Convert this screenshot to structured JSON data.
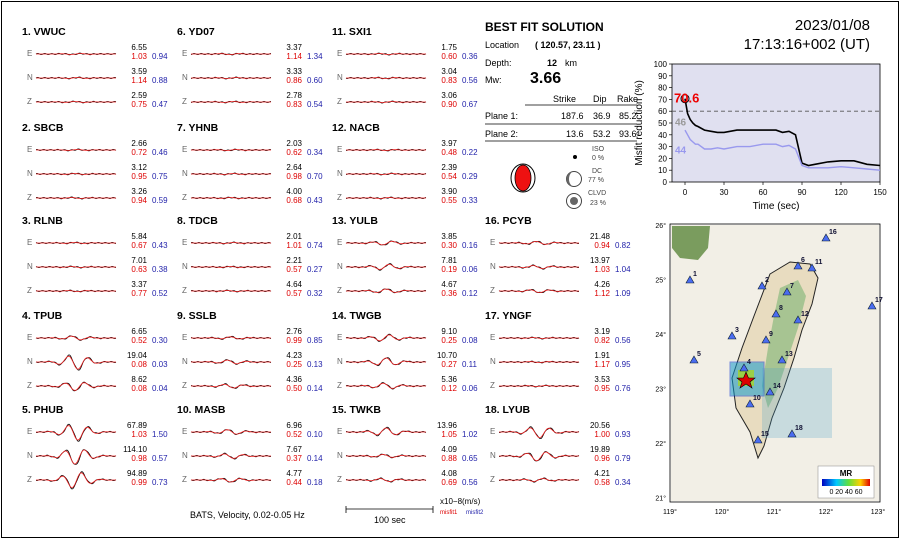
{
  "datetime": {
    "date": "2023/01/08",
    "time": "17:13:16+002  (UT)"
  },
  "best_fit": {
    "title": "BEST FIT SOLUTION",
    "location_label": "Location",
    "location_value": "( 120.57,  23.11 )",
    "depth_label": "Depth:",
    "depth_value": "12",
    "depth_unit": "km",
    "mw_label": "Mw:",
    "mw_value": "3.66",
    "header": {
      "strike": "Strike",
      "dip": "Dip",
      "rake": "Rake"
    },
    "plane1": {
      "label": "Plane 1:",
      "strike": "187.6",
      "dip": "36.9",
      "rake": "85.2"
    },
    "plane2": {
      "label": "Plane 2:",
      "strike": "13.6",
      "dip": "53.2",
      "rake": "93.6"
    },
    "iso": {
      "label": "ISO",
      "value": "0  %"
    },
    "dc": {
      "label": "DC",
      "value": "77 %"
    },
    "clvd": {
      "label": "CLVD",
      "value": "23 %"
    }
  },
  "stations": [
    {
      "title": "1.  VWUC",
      "rows": [
        [
          "6.55",
          "1.03",
          "0.94"
        ],
        [
          "3.59",
          "1.14",
          "0.88"
        ],
        [
          "2.59",
          "0.75",
          "0.47"
        ]
      ]
    },
    {
      "title": "2.  SBCB",
      "rows": [
        [
          "2.66",
          "0.72",
          "0.46"
        ],
        [
          "3.12",
          "0.95",
          "0.75"
        ],
        [
          "3.26",
          "0.94",
          "0.59"
        ]
      ]
    },
    {
      "title": "3.  RLNB",
      "rows": [
        [
          "5.84",
          "0.67",
          "0.43"
        ],
        [
          "7.01",
          "0.63",
          "0.38"
        ],
        [
          "3.37",
          "0.77",
          "0.52"
        ]
      ]
    },
    {
      "title": "4.  TPUB",
      "rows": [
        [
          "6.65",
          "0.52",
          "0.30"
        ],
        [
          "19.04",
          "0.08",
          "0.03"
        ],
        [
          "8.62",
          "0.08",
          "0.04"
        ]
      ]
    },
    {
      "title": "5.  PHUB",
      "rows": [
        [
          "67.89",
          "1.03",
          "1.50"
        ],
        [
          "114.10",
          "0.98",
          "0.57"
        ],
        [
          "94.89",
          "0.99",
          "0.73"
        ]
      ]
    },
    {
      "title": "6.  YD07",
      "rows": [
        [
          "3.37",
          "1.14",
          "1.34"
        ],
        [
          "3.33",
          "0.86",
          "0.60"
        ],
        [
          "2.78",
          "0.83",
          "0.54"
        ]
      ]
    },
    {
      "title": "7.  YHNB",
      "rows": [
        [
          "2.03",
          "0.62",
          "0.34"
        ],
        [
          "2.64",
          "0.98",
          "0.70"
        ],
        [
          "4.00",
          "0.68",
          "0.43"
        ]
      ]
    },
    {
      "title": "8.  TDCB",
      "rows": [
        [
          "2.01",
          "1.01",
          "0.74"
        ],
        [
          "2.21",
          "0.57",
          "0.27"
        ],
        [
          "4.64",
          "0.57",
          "0.32"
        ]
      ]
    },
    {
      "title": "9.  SSLB",
      "rows": [
        [
          "2.76",
          "0.99",
          "0.85"
        ],
        [
          "4.23",
          "0.25",
          "0.13"
        ],
        [
          "4.36",
          "0.50",
          "0.14"
        ]
      ]
    },
    {
      "title": "10.  MASB",
      "rows": [
        [
          "6.96",
          "0.52",
          "0.10"
        ],
        [
          "7.67",
          "0.37",
          "0.14"
        ],
        [
          "4.77",
          "0.44",
          "0.18"
        ]
      ]
    },
    {
      "title": "11.  SXI1",
      "rows": [
        [
          "1.75",
          "0.60",
          "0.36"
        ],
        [
          "3.04",
          "0.83",
          "0.56"
        ],
        [
          "3.06",
          "0.90",
          "0.67"
        ]
      ]
    },
    {
      "title": "12.  NACB",
      "rows": [
        [
          "3.97",
          "0.48",
          "0.22"
        ],
        [
          "2.39",
          "0.54",
          "0.29"
        ],
        [
          "3.90",
          "0.55",
          "0.33"
        ]
      ]
    },
    {
      "title": "13.  YULB",
      "rows": [
        [
          "3.85",
          "0.30",
          "0.16"
        ],
        [
          "7.81",
          "0.19",
          "0.06"
        ],
        [
          "4.67",
          "0.36",
          "0.12"
        ]
      ]
    },
    {
      "title": "14.  TWGB",
      "rows": [
        [
          "9.10",
          "0.25",
          "0.08"
        ],
        [
          "10.70",
          "0.27",
          "0.11"
        ],
        [
          "5.36",
          "0.12",
          "0.06"
        ]
      ]
    },
    {
      "title": "15.  TWKB",
      "rows": [
        [
          "13.96",
          "1.05",
          "1.02"
        ],
        [
          "4.09",
          "0.88",
          "0.65"
        ],
        [
          "4.08",
          "0.69",
          "0.56"
        ]
      ]
    },
    {
      "title": "16.  PCYB",
      "rows": [
        [
          "21.48",
          "0.94",
          "0.82"
        ],
        [
          "13.97",
          "1.03",
          "1.04"
        ],
        [
          "4.26",
          "1.12",
          "1.09"
        ]
      ]
    },
    {
      "title": "17.  YNGF",
      "rows": [
        [
          "3.19",
          "0.82",
          "0.56"
        ],
        [
          "1.91",
          "1.17",
          "0.95"
        ],
        [
          "3.53",
          "0.95",
          "0.76"
        ]
      ]
    },
    {
      "title": "18.  LYUB",
      "rows": [
        [
          "20.56",
          "1.00",
          "0.93"
        ],
        [
          "19.89",
          "0.96",
          "0.79"
        ],
        [
          "4.21",
          "0.58",
          "0.34"
        ]
      ]
    }
  ],
  "components": [
    "E",
    "N",
    "Z"
  ],
  "footer": {
    "description": "BATS, Velocity, 0.02-0.05 Hz",
    "unit": "x10−8(m/s)",
    "legend_misfit1": "misfit1",
    "legend_misfit2": "misfit2",
    "scale_label": "100 sec"
  },
  "chart_data": {
    "type": "line",
    "ylabel": "Misfit reduction (%)",
    "xlabel": "Time (sec)",
    "xlim": [
      -10,
      150
    ],
    "ylim": [
      0,
      100
    ],
    "xticks": [
      "0",
      "30",
      "60",
      "90",
      "120",
      "150"
    ],
    "yticks": [
      "0",
      "10",
      "20",
      "30",
      "40",
      "50",
      "60",
      "70",
      "80",
      "90",
      "100"
    ],
    "max_value": "70.6",
    "ref_labels": [
      "46",
      "44"
    ],
    "series": [
      {
        "color": "#000000",
        "x": [
          0,
          2,
          4,
          6,
          8,
          10,
          15,
          20,
          25,
          30,
          40,
          50,
          60,
          70,
          75,
          80,
          85,
          90,
          95,
          100,
          110,
          120,
          130,
          140,
          150
        ],
        "y": [
          70.6,
          58,
          53,
          50,
          48,
          47,
          44,
          43,
          42,
          42,
          44,
          44,
          44,
          44,
          42,
          43,
          40,
          16,
          14,
          15,
          17,
          18,
          18,
          15,
          14
        ]
      },
      {
        "color": "#9999ee",
        "x": [
          0,
          2,
          4,
          6,
          8,
          10,
          15,
          20,
          25,
          30,
          40,
          50,
          60,
          70,
          75,
          80,
          85,
          90,
          95,
          100,
          110,
          120,
          130,
          140,
          150
        ],
        "y": [
          44,
          40,
          36,
          34,
          32,
          32,
          28,
          28,
          29,
          28,
          30,
          30,
          32,
          32,
          30,
          31,
          28,
          14,
          12,
          12,
          12,
          13,
          12,
          11,
          10
        ]
      }
    ],
    "hlines": [
      60
    ]
  },
  "map": {
    "lat_labels": [
      "26°",
      "25°",
      "24°",
      "23°",
      "22°",
      "21°"
    ],
    "lon_labels": [
      "119°",
      "120°",
      "121°",
      "122°",
      "123°"
    ],
    "stations": [
      "1",
      "2",
      "3",
      "4",
      "5",
      "6",
      "7",
      "8",
      "9",
      "10",
      "11",
      "12",
      "13",
      "14",
      "15",
      "16",
      "17",
      "18"
    ],
    "colorbar_title": "MR",
    "colorbar_ticks": "0 20 40 60"
  }
}
